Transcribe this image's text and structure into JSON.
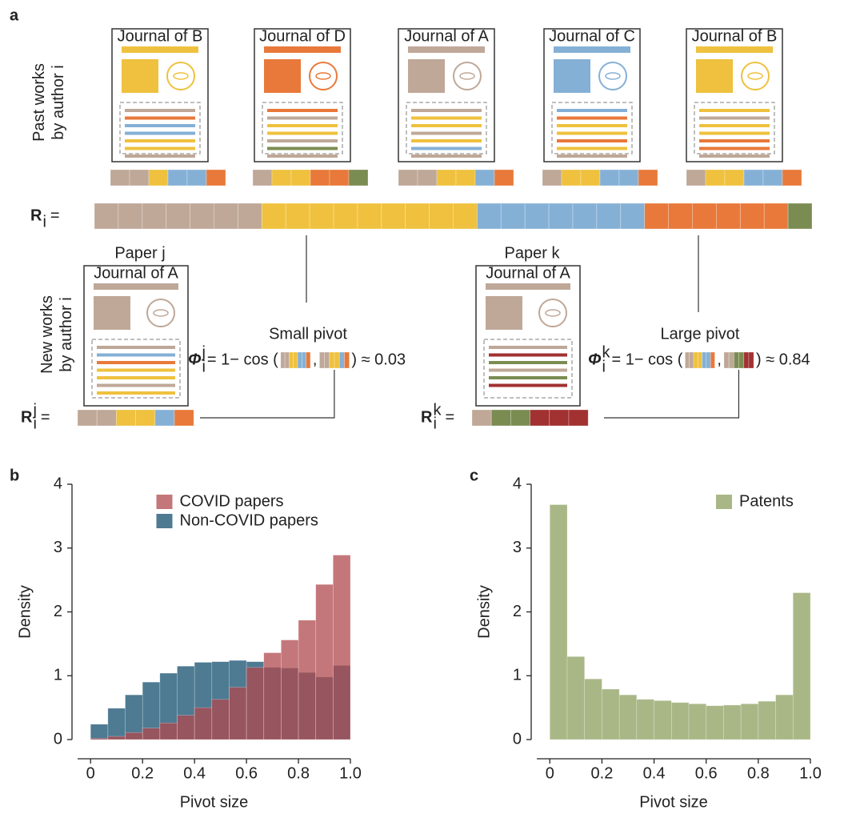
{
  "panel_a": {
    "label": "a",
    "past_label": [
      "Past works",
      "by author i"
    ],
    "past_journals": [
      {
        "name": "Journal of B",
        "color": "#efc13e"
      },
      {
        "name": "Journal of D",
        "color": "#e8793a"
      },
      {
        "name": "Journal of A",
        "color": "#bfa898"
      },
      {
        "name": "Journal of C",
        "color": "#85b0d6"
      },
      {
        "name": "Journal of B",
        "color": "#efc13e"
      }
    ],
    "profile": {
      "symbol": "R",
      "sub": "i",
      "eq": "="
    },
    "new_label": [
      "New works",
      "by author i"
    ],
    "new_papers": [
      {
        "name": "Paper j",
        "journal": "Journal of A",
        "journal_color": "#bfa898",
        "pivot": "Small pivot",
        "phi": "Φ",
        "sup": "j",
        "formula": "= 1− cos (",
        "sep": ",",
        "result": ") ≈ 0.03"
      },
      {
        "name": "Paper k",
        "journal": "Journal of A",
        "journal_color": "#bfa898",
        "pivot": "Large pivot",
        "phi": "Φ",
        "sup": "k",
        "formula": "= 1− cos (",
        "sep": ",",
        "result": ") ≈ 0.84"
      }
    ]
  },
  "chart_data": [
    {
      "type": "histogram",
      "panel": "b",
      "xlabel": "Pivot size",
      "ylabel": "Density",
      "bins": [
        0,
        0.0667,
        0.1333,
        0.2,
        0.2667,
        0.3333,
        0.4,
        0.4667,
        0.5333,
        0.6,
        0.6667,
        0.7333,
        0.8,
        0.8667,
        0.9333,
        1
      ],
      "series": [
        {
          "name": "Non-COVID papers",
          "color": "#4e7a92",
          "values": [
            0.24,
            0.49,
            0.7,
            0.9,
            1.04,
            1.15,
            1.21,
            1.22,
            1.24,
            1.22,
            1.13,
            1.12,
            1.05,
            0.98,
            1.16
          ]
        },
        {
          "name": "COVID papers",
          "color": "#b04a4d",
          "values": [
            0.02,
            0.05,
            0.11,
            0.18,
            0.26,
            0.38,
            0.5,
            0.63,
            0.82,
            1.13,
            1.36,
            1.56,
            1.87,
            2.43,
            2.89
          ]
        }
      ],
      "legend_order": [
        1,
        0
      ],
      "legend": "upper center",
      "xlim": [
        -0.05,
        1
      ],
      "ylim": [
        0,
        4
      ],
      "xticks": [
        0,
        0.2,
        0.4,
        0.6,
        0.8,
        {
          "value": 1,
          "label": "1.0"
        }
      ],
      "yticks": [
        0,
        1,
        2,
        3,
        4
      ]
    },
    {
      "type": "histogram",
      "panel": "c",
      "xlabel": "Pivot size",
      "ylabel": "Density",
      "bins": [
        0,
        0.0667,
        0.1333,
        0.2,
        0.2667,
        0.3333,
        0.4,
        0.4667,
        0.5333,
        0.6,
        0.6667,
        0.7333,
        0.8,
        0.8667,
        0.9333,
        1
      ],
      "series": [
        {
          "name": "Patents",
          "color": "#a9b787",
          "values": [
            3.68,
            1.3,
            0.95,
            0.79,
            0.7,
            0.63,
            0.61,
            0.58,
            0.56,
            0.53,
            0.54,
            0.56,
            0.6,
            0.7,
            2.3
          ]
        }
      ],
      "legend_order": [
        0
      ],
      "legend": "upper right",
      "xlim": [
        -0.05,
        1
      ],
      "ylim": [
        0,
        4
      ],
      "xticks": [
        0,
        0.2,
        0.4,
        0.6,
        0.8,
        {
          "value": 1,
          "label": "1.0"
        }
      ],
      "yticks": [
        0,
        1,
        2,
        3,
        4
      ]
    }
  ]
}
